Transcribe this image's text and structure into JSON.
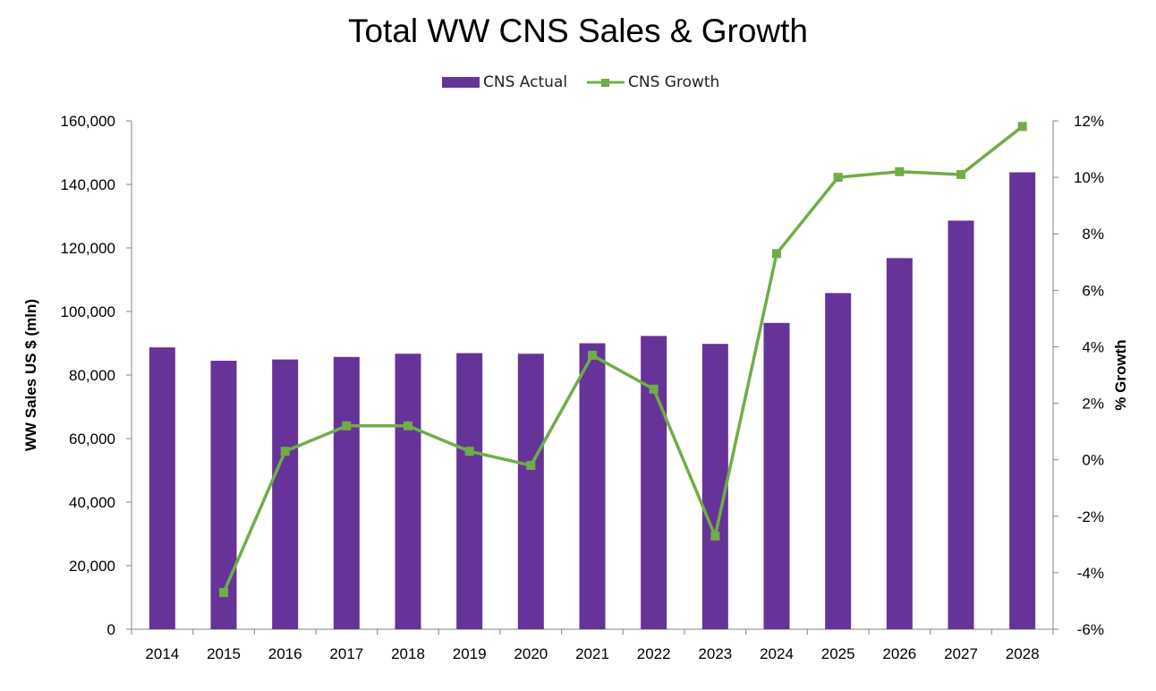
{
  "chart_data": {
    "type": "bar",
    "title": "Total WW CNS Sales & Growth",
    "categories": [
      "2014",
      "2015",
      "2016",
      "2017",
      "2018",
      "2019",
      "2020",
      "2021",
      "2022",
      "2023",
      "2024",
      "2025",
      "2026",
      "2027",
      "2028"
    ],
    "series": [
      {
        "name": "CNS Actual",
        "type": "bar",
        "axis": "left",
        "color": "#663399",
        "values": [
          88700,
          84500,
          84900,
          85700,
          86700,
          86900,
          86700,
          90000,
          92300,
          89800,
          96400,
          105800,
          116800,
          128600,
          143800
        ]
      },
      {
        "name": "CNS Growth",
        "type": "line",
        "axis": "right",
        "color": "#70AD47",
        "values": [
          null,
          -4.7,
          0.3,
          1.2,
          1.2,
          0.3,
          -0.2,
          3.7,
          2.5,
          -2.7,
          7.3,
          10.0,
          10.2,
          10.1,
          11.8
        ]
      }
    ],
    "ylabel": "WW Sales US $ (mln)",
    "ylim": [
      0,
      160000
    ],
    "yticks": [
      "0",
      "20,000",
      "40,000",
      "60,000",
      "80,000",
      "100,000",
      "120,000",
      "140,000",
      "160,000"
    ],
    "y2label": "% Growth",
    "y2lim": [
      -6,
      12
    ],
    "y2ticks": [
      "-6%",
      "-4%",
      "-2%",
      "0%",
      "2%",
      "4%",
      "6%",
      "8%",
      "10%",
      "12%"
    ],
    "legend_position": "top-center",
    "grid": false
  }
}
